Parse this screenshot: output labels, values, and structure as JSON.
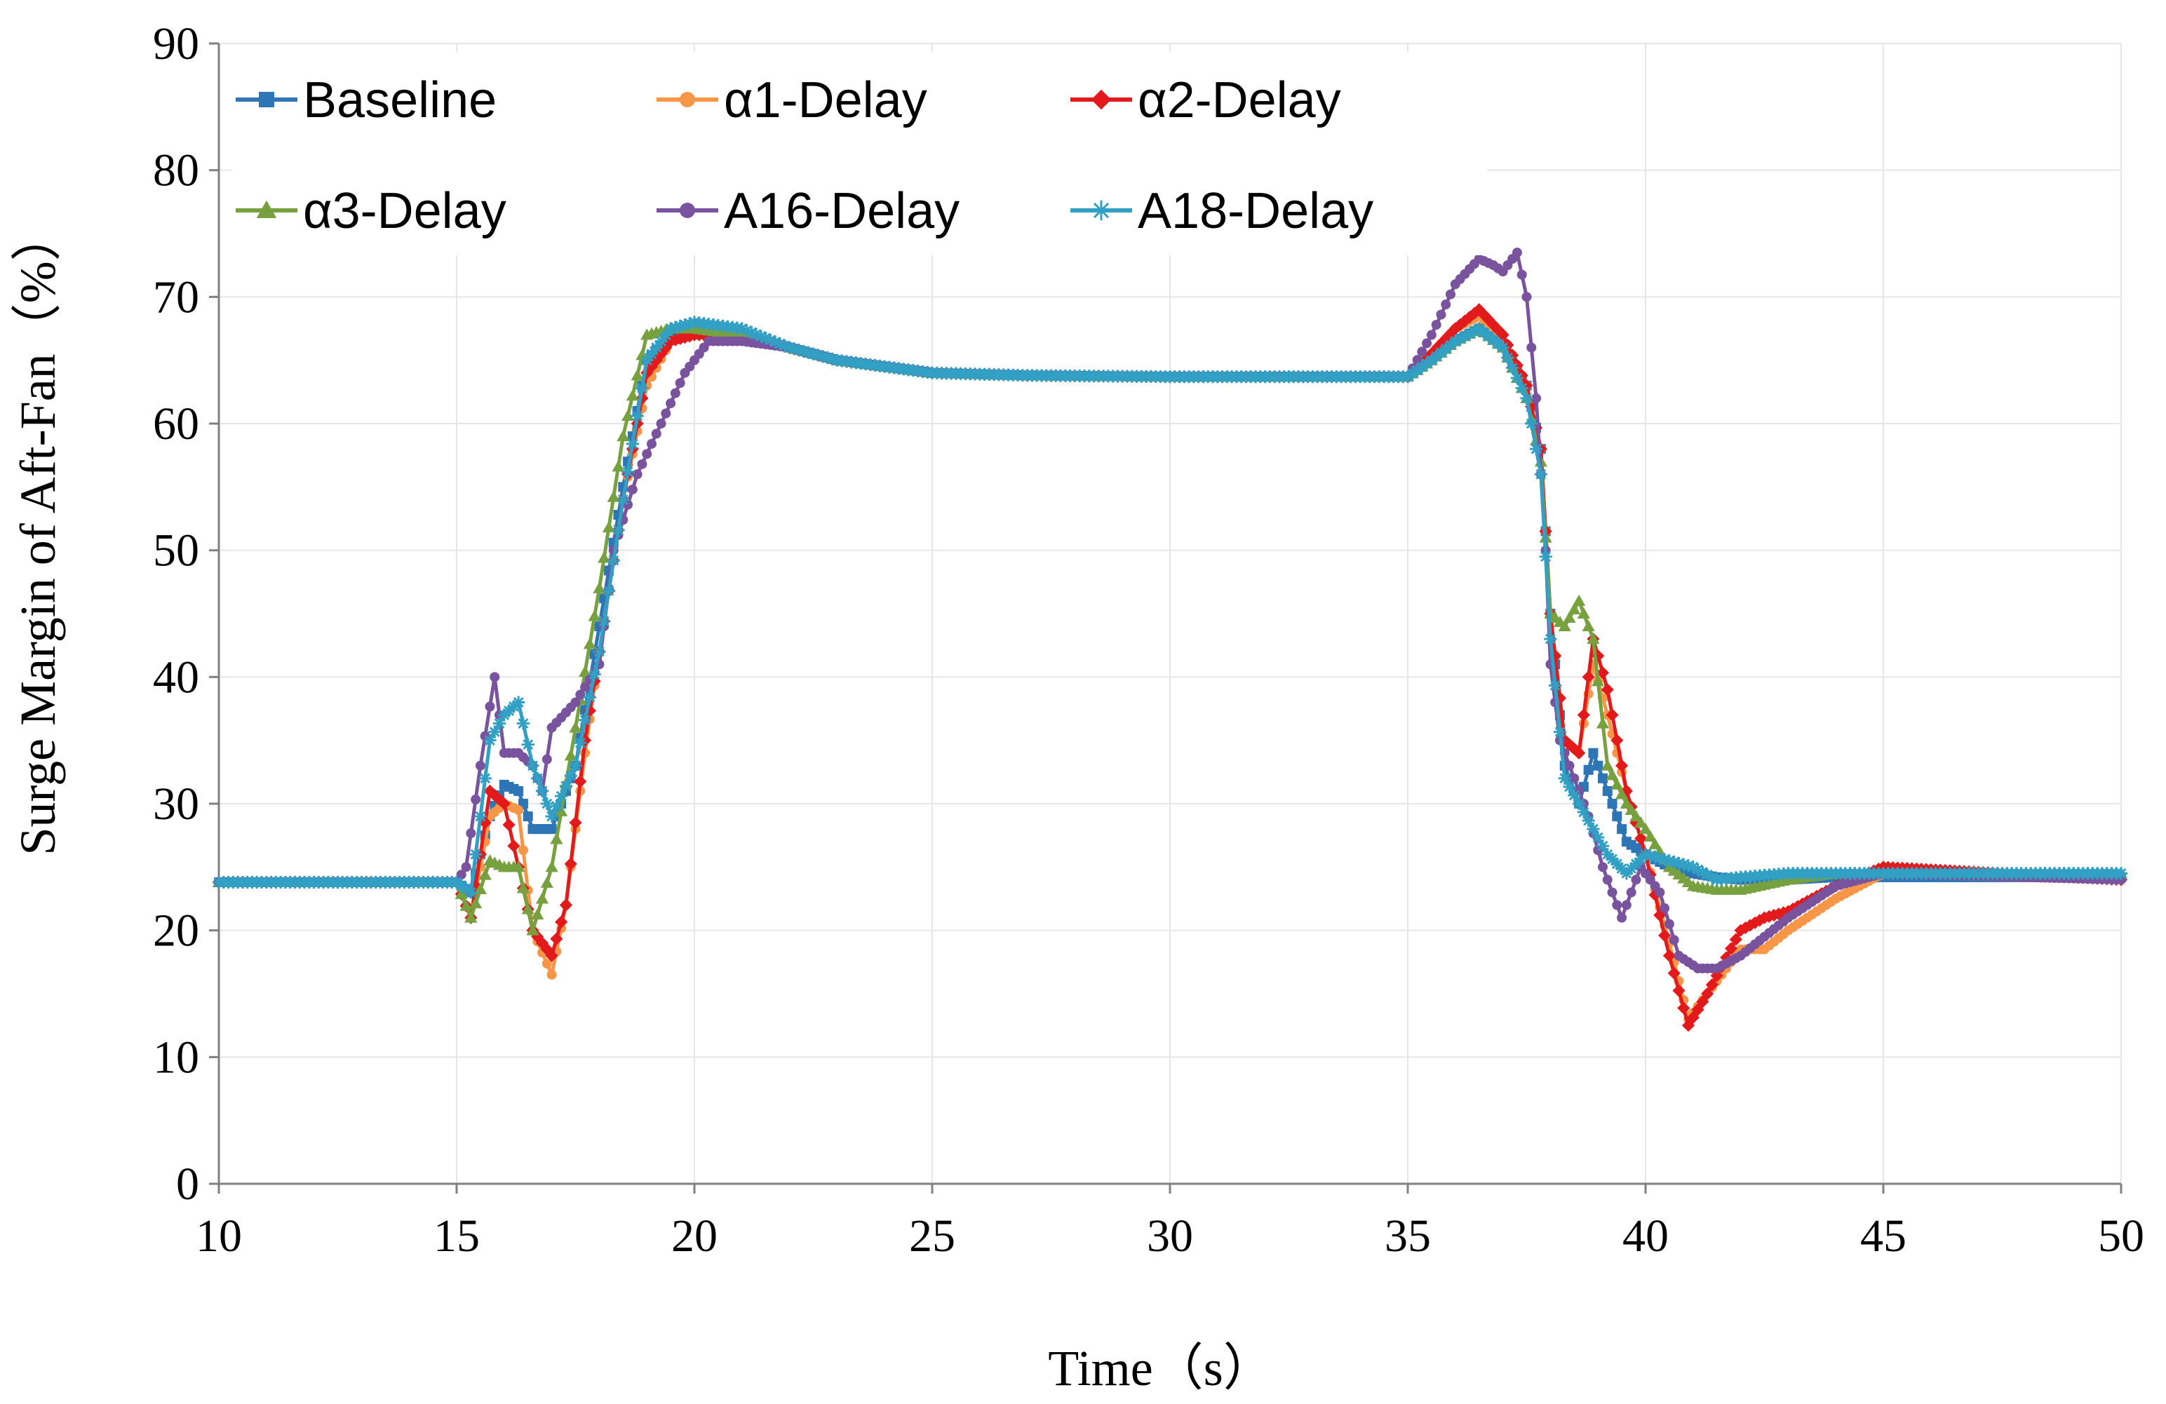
{
  "chart_data": {
    "type": "line",
    "title": "",
    "xlabel": "Time（s）",
    "ylabel": "Surge Margin of Aft-Fan（%）",
    "xlim": [
      10,
      50
    ],
    "ylim": [
      0,
      90
    ],
    "xticks": [
      10,
      15,
      20,
      25,
      30,
      35,
      40,
      45,
      50
    ],
    "yticks": [
      0,
      10,
      20,
      30,
      40,
      50,
      60,
      70,
      80,
      90
    ],
    "grid": true,
    "legend_position": "top-left",
    "series": [
      {
        "name": "Baseline",
        "color": "#2e75b6",
        "marker": "square",
        "x": [
          10,
          15,
          15.3,
          15.7,
          16.0,
          16.3,
          16.6,
          17.0,
          17.5,
          18.0,
          18.5,
          19.0,
          19.5,
          20,
          21,
          22,
          23,
          25,
          27,
          30,
          35,
          35.5,
          36,
          36.5,
          37,
          37.5,
          37.8,
          38.0,
          38.3,
          38.6,
          38.9,
          39.2,
          39.6,
          40,
          40.5,
          41,
          41.5,
          42,
          43,
          44,
          45,
          50
        ],
        "y": [
          23.8,
          23.8,
          23,
          29,
          31.5,
          31,
          28,
          28,
          33,
          44,
          55,
          65,
          67,
          67.6,
          67,
          66,
          65,
          64,
          63.8,
          63.7,
          63.7,
          65,
          66.5,
          67.5,
          66,
          63,
          58,
          45,
          33,
          30,
          34,
          31,
          27,
          26,
          25,
          24.5,
          24.2,
          24,
          24,
          24.2,
          24.2,
          24.2
        ]
      },
      {
        "name": "α1-Delay",
        "color": "#f79646",
        "marker": "circle",
        "x": [
          10,
          15,
          15.3,
          15.7,
          16.0,
          16.3,
          16.6,
          17.0,
          17.3,
          17.7,
          18.0,
          18.5,
          19.0,
          19.5,
          20,
          21,
          22,
          23,
          25,
          27,
          30,
          35,
          35.5,
          36,
          36.5,
          37,
          37.5,
          37.8,
          38.0,
          38.3,
          38.6,
          38.9,
          39.2,
          39.6,
          40,
          40.5,
          40.9,
          41.3,
          42,
          42.5,
          43,
          44,
          45,
          50
        ],
        "y": [
          23.8,
          23.8,
          21,
          29,
          30,
          29.5,
          20,
          16.5,
          22,
          34,
          42,
          54,
          63,
          66.5,
          67,
          67,
          66,
          65,
          64,
          63.8,
          63.7,
          63.7,
          65.5,
          67.5,
          68.5,
          67,
          63,
          58,
          45,
          35,
          34,
          41,
          37,
          31,
          26,
          19,
          13,
          15,
          18.5,
          18.5,
          20,
          22.5,
          24.5,
          24
        ]
      },
      {
        "name": "α2-Delay",
        "color": "#e31a1c",
        "marker": "diamond",
        "x": [
          10,
          15,
          15.3,
          15.7,
          16.0,
          16.3,
          16.6,
          17.0,
          17.3,
          17.7,
          18.0,
          18.5,
          19.0,
          19.5,
          20,
          21,
          22,
          23,
          25,
          27,
          30,
          35,
          35.5,
          36,
          36.5,
          37,
          37.5,
          37.8,
          38.0,
          38.3,
          38.6,
          38.9,
          39.2,
          39.6,
          40,
          40.5,
          40.9,
          41.3,
          42,
          42.5,
          43,
          44,
          45,
          50
        ],
        "y": [
          23.8,
          23.8,
          21,
          31,
          30,
          25,
          20,
          18,
          22,
          35,
          42,
          54,
          64,
          66.5,
          67,
          67,
          66,
          65,
          64,
          63.8,
          63.7,
          63.7,
          65.5,
          67.5,
          69,
          67,
          63,
          58,
          45,
          35,
          34,
          43,
          39,
          31,
          26,
          18,
          12.5,
          15,
          20,
          21,
          21.5,
          23.5,
          25,
          24
        ]
      },
      {
        "name": "α3-Delay",
        "color": "#77a03f",
        "marker": "triangle",
        "x": [
          10,
          15,
          15.3,
          15.7,
          16.0,
          16.3,
          16.6,
          17.0,
          17.5,
          18.0,
          18.5,
          19.0,
          19.5,
          20,
          21,
          22,
          23,
          25,
          27,
          30,
          35,
          35.5,
          36,
          36.5,
          37,
          37.5,
          37.8,
          38.0,
          38.3,
          38.6,
          38.9,
          39.2,
          39.6,
          40,
          40.5,
          41,
          41.5,
          42,
          43,
          44,
          45,
          50
        ],
        "y": [
          23.8,
          23.8,
          21,
          25.5,
          25,
          25,
          20,
          25,
          36,
          47,
          59,
          67,
          67.5,
          67.5,
          67,
          66,
          65,
          64,
          63.8,
          63.7,
          63.7,
          65,
          66.5,
          67.5,
          66,
          62,
          57,
          45,
          44,
          46,
          43,
          33,
          30,
          28,
          25,
          23.5,
          23.2,
          23.2,
          24,
          24.5,
          24.5,
          24.5
        ]
      },
      {
        "name": "A16-Delay",
        "color": "#7a539f",
        "marker": "circle",
        "x": [
          10,
          15,
          15.2,
          15.5,
          15.8,
          16.0,
          16.3,
          16.6,
          16.8,
          17.0,
          17.5,
          18.0,
          18.3,
          18.8,
          19.3,
          19.8,
          20.3,
          21,
          22,
          23,
          25,
          27,
          30,
          35,
          35.5,
          36,
          36.5,
          36.8,
          37.0,
          37.3,
          37.5,
          37.7,
          37.9,
          38.0,
          38.2,
          38.5,
          38.8,
          39.1,
          39.5,
          39.9,
          40.3,
          40.7,
          41.1,
          41.5,
          42,
          43,
          44,
          45,
          50
        ],
        "y": [
          23.8,
          23.8,
          25,
          33,
          40,
          34,
          34,
          33,
          31,
          36,
          38,
          41,
          50,
          56,
          60,
          64,
          66.5,
          66.5,
          66,
          65,
          64,
          63.8,
          63.7,
          63.7,
          67,
          71,
          73,
          72.5,
          72,
          73.5,
          70,
          62,
          50,
          41,
          35,
          32,
          29,
          25,
          21,
          25,
          23,
          18,
          17,
          17,
          18,
          21,
          23.5,
          24.5,
          24
        ]
      },
      {
        "name": "A18-Delay",
        "color": "#31a0c4",
        "marker": "asterisk",
        "x": [
          10,
          15,
          15.3,
          15.7,
          16.0,
          16.3,
          16.6,
          17.0,
          17.5,
          18.0,
          18.5,
          19.0,
          19.5,
          20,
          21,
          22,
          23,
          25,
          27,
          30,
          35,
          35.5,
          36,
          36.5,
          37,
          37.5,
          37.8,
          38.0,
          38.3,
          38.6,
          38.9,
          39.2,
          39.6,
          40,
          40.5,
          41,
          41.5,
          42,
          43,
          44,
          45,
          50
        ],
        "y": [
          23.8,
          23.8,
          23,
          35,
          37,
          38,
          33,
          29,
          33,
          42,
          54,
          65,
          67.5,
          68,
          67.5,
          66,
          65,
          64,
          63.8,
          63.7,
          63.7,
          65,
          66.5,
          67.5,
          66,
          62,
          56,
          43,
          32,
          30,
          28,
          26,
          24.5,
          26,
          25.5,
          25,
          24,
          24.2,
          24.5,
          24.5,
          24.5,
          24.5
        ]
      }
    ]
  }
}
